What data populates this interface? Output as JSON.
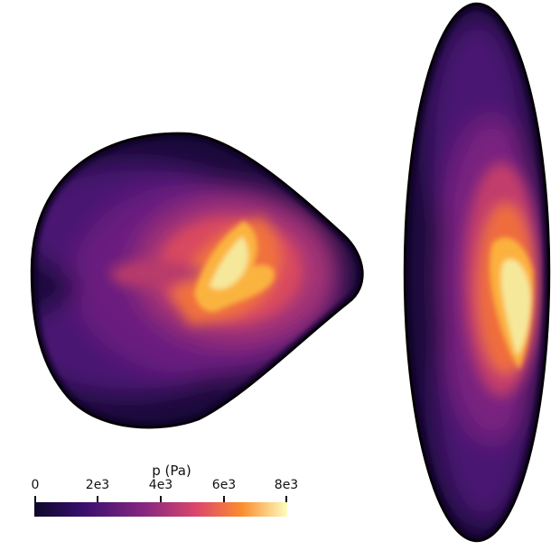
{
  "colorbar": {
    "title": "p (Pa)",
    "ticks": [
      "0",
      "2e3",
      "4e3",
      "6e3",
      "8e3"
    ],
    "min": 0,
    "max": 8000,
    "colormap": "inferno",
    "stops": [
      "#0d0829",
      "#3b0f70",
      "#8c2981",
      "#de4968",
      "#fb8d2e",
      "#fcfdbf"
    ]
  },
  "panels": [
    {
      "view": "poloidal cross-section (left)",
      "peak_region": "core, upper-right of center"
    },
    {
      "view": "elongated side view (right)",
      "peak_region": "right edge, center"
    }
  ]
}
